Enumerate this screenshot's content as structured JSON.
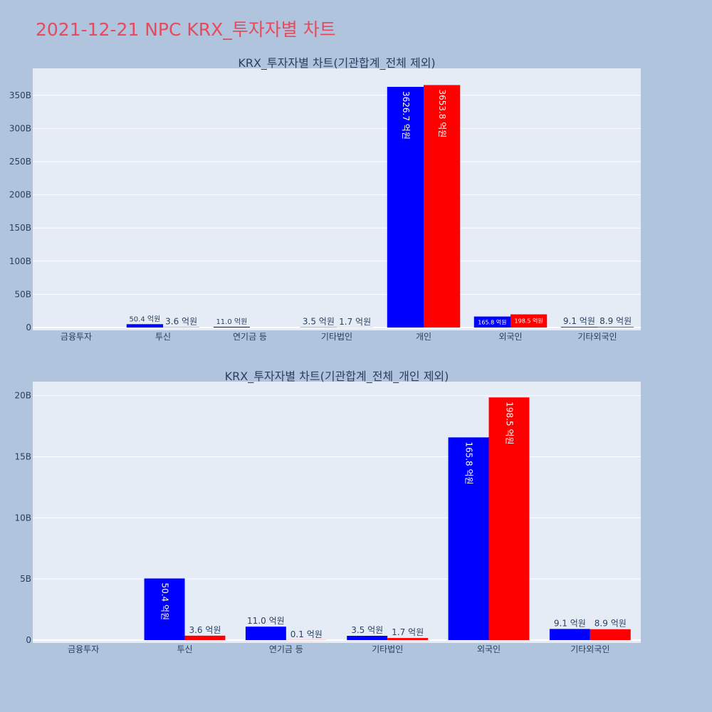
{
  "title": "2021-12-21 NPC KRX_투자자별 차트",
  "colors": {
    "buy": "#0000ff",
    "sell": "#ff0000",
    "plot_bg": "#e5ecf6",
    "page_bg": "#b0c4de",
    "title": "#e8495c"
  },
  "chart_data": [
    {
      "type": "bar",
      "title": "KRX_투자자별 차트(기관합계_전체 제외)",
      "categories": [
        "금융투자",
        "투신",
        "연기금 등",
        "기타법인",
        "개인",
        "외국인",
        "기타외국인"
      ],
      "series": [
        {
          "values": [
            0,
            5.04,
            1.1,
            0.35,
            362.67,
            16.58,
            0.91
          ],
          "labels": [
            "",
            "50.4 억원",
            "11.0 억원",
            "3.5 억원",
            "3626.7 억원",
            "165.8 억원",
            "9.1 억원"
          ]
        },
        {
          "values": [
            0,
            0.36,
            0.01,
            0.17,
            365.38,
            19.85,
            0.89
          ],
          "labels": [
            "",
            "3.6 억원",
            "",
            "1.7 억원",
            "3653.8 억원",
            "198.5 억원",
            "8.9 억원"
          ]
        }
      ],
      "yticks": [
        "0",
        "50B",
        "100B",
        "150B",
        "200B",
        "250B",
        "300B",
        "350B"
      ],
      "ylim": [
        0,
        385
      ],
      "grid": true
    },
    {
      "type": "bar",
      "title": "KRX_투자자별 차트(기관합계_전체_개인 제외)",
      "categories": [
        "금융투자",
        "투신",
        "연기금 등",
        "기타법인",
        "외국인",
        "기타외국인"
      ],
      "series": [
        {
          "values": [
            0,
            5.04,
            1.1,
            0.35,
            16.58,
            0.91
          ],
          "labels": [
            "",
            "50.4 억원",
            "11.0 억원",
            "3.5 억원",
            "165.8 억원",
            "9.1 억원"
          ]
        },
        {
          "values": [
            0,
            0.36,
            0.01,
            0.17,
            19.85,
            0.89
          ],
          "labels": [
            "",
            "3.6 억원",
            "0.1 억원",
            "1.7 억원",
            "198.5 억원",
            "8.9 억원"
          ]
        }
      ],
      "yticks": [
        "0",
        "5B",
        "10B",
        "15B",
        "20B"
      ],
      "ylim": [
        0,
        20.95
      ],
      "grid": true
    }
  ]
}
